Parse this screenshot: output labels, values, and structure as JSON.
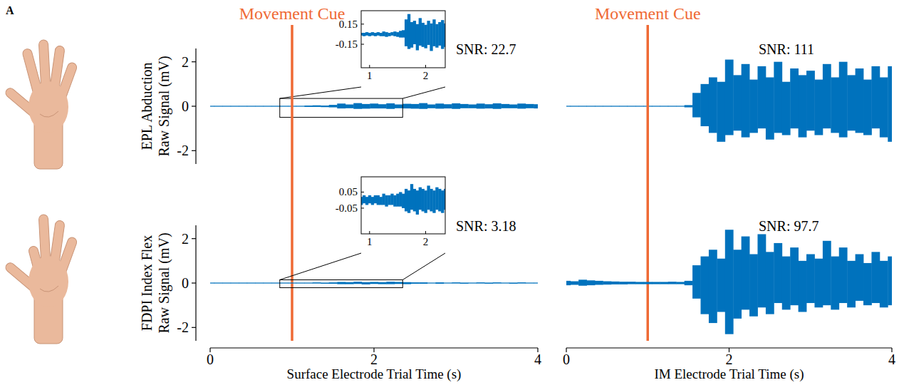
{
  "panel_label": "A",
  "chart_data": [
    {
      "type": "area",
      "ylabel": [
        "EPL Abduction",
        "Raw Signal (mV)"
      ],
      "x": [
        0,
        0.1,
        0.2,
        0.3,
        0.4,
        0.5,
        0.6,
        0.7,
        0.8,
        0.9,
        1,
        1.1,
        1.2,
        1.3,
        1.4,
        1.5,
        1.6,
        1.7,
        1.8,
        1.9,
        2,
        2.1,
        2.2,
        2.3,
        2.4,
        2.5,
        2.6,
        2.7,
        2.8,
        2.9,
        3,
        3.1,
        3.2,
        3.3,
        3.4,
        3.5,
        3.6,
        3.7,
        3.8,
        3.9,
        4
      ],
      "xlim": [
        0,
        4
      ],
      "ylim": [
        -2.6,
        2.6
      ],
      "yticks": [
        -2,
        0,
        2
      ],
      "tick_labels": "y",
      "series": [
        {
          "color": "#0072bd",
          "values": [
            0.02,
            0.02,
            0.02,
            0.02,
            0.02,
            0.02,
            0.02,
            0.02,
            0.02,
            0.02,
            0.02,
            0.02,
            0.03,
            0.04,
            0.03,
            0.06,
            0.12,
            0.08,
            0.14,
            0.1,
            0.12,
            0.09,
            0.13,
            0.08,
            0.11,
            0.1,
            0.14,
            0.08,
            0.12,
            0.09,
            0.13,
            0.1,
            0.08,
            0.12,
            0.09,
            0.13,
            0.1,
            0.08,
            0.12,
            0.1,
            0.09
          ],
          "lower": [
            -0.02,
            -0.02,
            -0.02,
            -0.02,
            -0.02,
            -0.02,
            -0.02,
            -0.02,
            -0.02,
            -0.02,
            -0.02,
            -0.02,
            -0.03,
            -0.03,
            -0.04,
            -0.05,
            -0.1,
            -0.09,
            -0.12,
            -0.11,
            -0.1,
            -0.1,
            -0.12,
            -0.09,
            -0.1,
            -0.11,
            -0.12,
            -0.09,
            -0.11,
            -0.1,
            -0.12,
            -0.09,
            -0.09,
            -0.11,
            -0.1,
            -0.12,
            -0.09,
            -0.09,
            -0.11,
            -0.09,
            -0.1
          ]
        }
      ],
      "annotations": [
        {
          "text": "Movement Cue",
          "x": 1,
          "color": "#ef6a35"
        },
        {
          "text": "SNR: 22.7"
        }
      ],
      "inset": {
        "type": "area",
        "x": [
          0.85,
          0.9,
          0.95,
          1,
          1.05,
          1.1,
          1.15,
          1.2,
          1.25,
          1.3,
          1.35,
          1.4,
          1.45,
          1.5,
          1.55,
          1.6,
          1.65,
          1.7,
          1.75,
          1.8,
          1.85,
          1.9,
          1.95,
          2,
          2.05,
          2.1,
          2.15,
          2.2,
          2.25,
          2.3,
          2.35
        ],
        "xlim": [
          0.85,
          2.35
        ],
        "ylim": [
          -0.5,
          0.35
        ],
        "xticks": [
          1,
          2
        ],
        "yticks": [
          -0.15,
          0.15
        ],
        "series": [
          {
            "color": "#0072bd",
            "values": [
              0.02,
              0.02,
              0.03,
              0.02,
              0.03,
              0.02,
              0.03,
              0.02,
              0.04,
              0.03,
              0.02,
              0.03,
              0.04,
              0.03,
              0.05,
              0.06,
              0.22,
              0.3,
              0.18,
              0.2,
              0.15,
              0.24,
              0.17,
              0.14,
              0.2,
              0.16,
              0.22,
              0.15,
              0.18,
              0.21,
              0.16
            ],
            "lower": [
              -0.02,
              -0.03,
              -0.02,
              -0.03,
              -0.02,
              -0.03,
              -0.02,
              -0.03,
              -0.03,
              -0.04,
              -0.03,
              -0.02,
              -0.03,
              -0.04,
              -0.05,
              -0.05,
              -0.18,
              -0.22,
              -0.2,
              -0.15,
              -0.24,
              -0.17,
              -0.19,
              -0.21,
              -0.16,
              -0.25,
              -0.18,
              -0.2,
              -0.17,
              -0.22,
              -0.19
            ]
          }
        ]
      }
    },
    {
      "type": "area",
      "x": [
        0,
        0.1,
        0.2,
        0.3,
        0.4,
        0.5,
        0.6,
        0.7,
        0.8,
        0.9,
        1,
        1.1,
        1.2,
        1.3,
        1.4,
        1.5,
        1.6,
        1.7,
        1.8,
        1.9,
        2,
        2.1,
        2.2,
        2.3,
        2.4,
        2.5,
        2.6,
        2.7,
        2.8,
        2.9,
        3,
        3.1,
        3.2,
        3.3,
        3.4,
        3.5,
        3.6,
        3.7,
        3.8,
        3.9,
        4
      ],
      "xlim": [
        0,
        4
      ],
      "ylim": [
        -2.6,
        2.6
      ],
      "tick_labels": false,
      "series": [
        {
          "color": "#0072bd",
          "values": [
            0.02,
            0.02,
            0.02,
            0.02,
            0.02,
            0.02,
            0.02,
            0.02,
            0.02,
            0.02,
            0.02,
            0.02,
            0.02,
            0.02,
            0.02,
            0.05,
            0.6,
            1.0,
            1.3,
            1.1,
            2.1,
            1.4,
            1.9,
            1.2,
            1.8,
            1.3,
            2.0,
            1.1,
            1.7,
            1.4,
            1.6,
            1.2,
            1.9,
            1.3,
            2.0,
            1.4,
            1.7,
            1.2,
            1.8,
            1.3,
            1.8
          ],
          "lower": [
            -0.02,
            -0.02,
            -0.02,
            -0.02,
            -0.02,
            -0.02,
            -0.02,
            -0.02,
            -0.02,
            -0.02,
            -0.02,
            -0.02,
            -0.02,
            -0.02,
            -0.02,
            -0.05,
            -0.5,
            -0.9,
            -1.2,
            -1.6,
            -1.3,
            -1.1,
            -1.4,
            -1.2,
            -1.0,
            -1.5,
            -1.2,
            -1.3,
            -1.0,
            -1.4,
            -1.1,
            -1.3,
            -1.0,
            -1.2,
            -1.4,
            -1.1,
            -1.2,
            -1.3,
            -1.0,
            -1.4,
            -1.6
          ]
        }
      ],
      "annotations": [
        {
          "text": "Movement Cue",
          "x": 1,
          "color": "#ef6a35"
        },
        {
          "text": "SNR: 111"
        }
      ]
    },
    {
      "type": "area",
      "ylabel": [
        "FDPI Index Flex",
        "Raw Signal (mV)"
      ],
      "xlabel": "Surface Electrode Trial Time (s)",
      "x": [
        0,
        0.1,
        0.2,
        0.3,
        0.4,
        0.5,
        0.6,
        0.7,
        0.8,
        0.9,
        1,
        1.1,
        1.2,
        1.3,
        1.4,
        1.5,
        1.6,
        1.7,
        1.8,
        1.9,
        2,
        2.1,
        2.2,
        2.3,
        2.4,
        2.5,
        2.6,
        2.7,
        2.8,
        2.9,
        3,
        3.1,
        3.2,
        3.3,
        3.4,
        3.5,
        3.6,
        3.7,
        3.8,
        3.9,
        4
      ],
      "xlim": [
        0,
        4
      ],
      "ylim": [
        -2.6,
        2.6
      ],
      "xticks": [
        0,
        2,
        4
      ],
      "yticks": [
        -2,
        0,
        2
      ],
      "tick_labels": true,
      "series": [
        {
          "color": "#0072bd",
          "values": [
            0.02,
            0.02,
            0.02,
            0.02,
            0.02,
            0.02,
            0.02,
            0.02,
            0.02,
            0.02,
            0.02,
            0.02,
            0.02,
            0.03,
            0.02,
            0.03,
            0.05,
            0.04,
            0.06,
            0.04,
            0.05,
            0.04,
            0.06,
            0.05,
            0.04,
            0.03,
            0.03,
            0.02,
            0.03,
            0.02,
            0.03,
            0.02,
            0.02,
            0.03,
            0.02,
            0.03,
            0.02,
            0.02,
            0.03,
            0.02,
            0.02
          ],
          "lower": [
            -0.02,
            -0.02,
            -0.02,
            -0.02,
            -0.02,
            -0.02,
            -0.02,
            -0.02,
            -0.02,
            -0.02,
            -0.02,
            -0.02,
            -0.02,
            -0.02,
            -0.03,
            -0.03,
            -0.05,
            -0.05,
            -0.04,
            -0.06,
            -0.04,
            -0.05,
            -0.05,
            -0.04,
            -0.05,
            -0.03,
            -0.03,
            -0.02,
            -0.03,
            -0.02,
            -0.02,
            -0.03,
            -0.02,
            -0.02,
            -0.03,
            -0.02,
            -0.02,
            -0.03,
            -0.02,
            -0.02,
            -0.02
          ]
        }
      ],
      "annotations": [
        {
          "text": "SNR: 3.18"
        }
      ],
      "inset": {
        "type": "area",
        "x": [
          0.85,
          0.9,
          0.95,
          1,
          1.05,
          1.1,
          1.15,
          1.2,
          1.25,
          1.3,
          1.35,
          1.4,
          1.45,
          1.5,
          1.55,
          1.6,
          1.65,
          1.7,
          1.75,
          1.8,
          1.85,
          1.9,
          1.95,
          2,
          2.05,
          2.1,
          2.15,
          2.2,
          2.25,
          2.3,
          2.35
        ],
        "xlim": [
          0.85,
          2.35
        ],
        "ylim": [
          -0.21,
          0.145
        ],
        "xticks": [
          1,
          2
        ],
        "yticks": [
          -0.05,
          0.05
        ],
        "series": [
          {
            "color": "#0072bd",
            "values": [
              0.02,
              0.03,
              0.02,
              0.03,
              0.02,
              0.03,
              0.03,
              0.02,
              0.04,
              0.03,
              0.03,
              0.04,
              0.03,
              0.04,
              0.05,
              0.04,
              0.07,
              0.06,
              0.1,
              0.07,
              0.06,
              0.08,
              0.07,
              0.06,
              0.09,
              0.07,
              0.06,
              0.08,
              0.07,
              0.06,
              0.07
            ],
            "lower": [
              -0.03,
              -0.02,
              -0.03,
              -0.02,
              -0.03,
              -0.02,
              -0.03,
              -0.03,
              -0.03,
              -0.04,
              -0.03,
              -0.03,
              -0.04,
              -0.04,
              -0.04,
              -0.05,
              -0.07,
              -0.08,
              -0.06,
              -0.07,
              -0.09,
              -0.06,
              -0.07,
              -0.08,
              -0.06,
              -0.07,
              -0.08,
              -0.06,
              -0.07,
              -0.08,
              -0.06
            ]
          }
        ]
      }
    },
    {
      "type": "area",
      "xlabel": "IM Electrode Trial Time (s)",
      "x": [
        0,
        0.1,
        0.2,
        0.3,
        0.4,
        0.5,
        0.6,
        0.7,
        0.8,
        0.9,
        1,
        1.1,
        1.2,
        1.3,
        1.4,
        1.5,
        1.6,
        1.7,
        1.8,
        1.9,
        2,
        2.1,
        2.2,
        2.3,
        2.4,
        2.5,
        2.6,
        2.7,
        2.8,
        2.9,
        3,
        3.1,
        3.2,
        3.3,
        3.4,
        3.5,
        3.6,
        3.7,
        3.8,
        3.9,
        4
      ],
      "xlim": [
        0,
        4
      ],
      "ylim": [
        -2.6,
        2.6
      ],
      "xticks": [
        0,
        2,
        4
      ],
      "tick_labels": "x",
      "series": [
        {
          "color": "#0072bd",
          "values": [
            0.1,
            0.08,
            0.15,
            0.12,
            0.1,
            0.08,
            0.07,
            0.06,
            0.06,
            0.05,
            0.05,
            0.05,
            0.05,
            0.06,
            0.05,
            0.1,
            0.8,
            1.2,
            1.5,
            1.1,
            2.4,
            1.5,
            2.1,
            1.3,
            2.2,
            1.4,
            1.8,
            1.2,
            1.6,
            1.0,
            1.3,
            1.1,
            1.9,
            1.2,
            1.6,
            1.0,
            1.3,
            0.9,
            1.4,
            1.0,
            1.2
          ],
          "lower": [
            -0.1,
            -0.08,
            -0.12,
            -0.1,
            -0.08,
            -0.07,
            -0.06,
            -0.06,
            -0.05,
            -0.05,
            -0.05,
            -0.05,
            -0.05,
            -0.05,
            -0.05,
            -0.1,
            -0.7,
            -1.4,
            -1.8,
            -1.3,
            -2.3,
            -1.6,
            -1.2,
            -1.5,
            -1.1,
            -1.4,
            -0.9,
            -1.2,
            -1.0,
            -1.3,
            -0.9,
            -1.1,
            -1.0,
            -1.2,
            -0.9,
            -1.1,
            -0.8,
            -1.0,
            -0.9,
            -1.1,
            -1.0
          ]
        }
      ],
      "annotations": [
        {
          "text": "SNR: 97.7"
        }
      ]
    }
  ]
}
